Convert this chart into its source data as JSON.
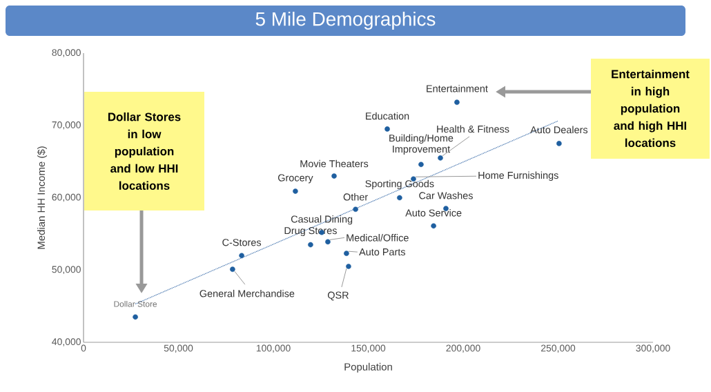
{
  "chart_data": {
    "type": "scatter",
    "title": "5 Mile Demographics",
    "xlabel": "Population",
    "ylabel": "Median HH Income ($)",
    "xlim": [
      0,
      300000
    ],
    "ylim": [
      40000,
      80000
    ],
    "xticks": [
      0,
      {
        "value": 50000,
        "label": "50,000"
      },
      {
        "value": 100000,
        "label": "100,000"
      },
      {
        "value": 150000,
        "label": "150,000"
      },
      {
        "value": 200000,
        "label": "200,000"
      },
      {
        "value": 250000,
        "label": "250,000"
      },
      {
        "value": 300000,
        "label": "300,000"
      }
    ],
    "yticks": [
      {
        "value": 40000,
        "label": "40,000"
      },
      {
        "value": 50000,
        "label": "50,000"
      },
      {
        "value": 60000,
        "label": "60,000"
      },
      {
        "value": 70000,
        "label": "70,000"
      },
      {
        "value": 80000,
        "label": "80,000"
      }
    ],
    "grid": false,
    "series": [
      {
        "marker": "circle",
        "color": "#1f5fa0",
        "x": [
          27300,
          78500,
          83300,
          111600,
          119600,
          125500,
          128700,
          132000,
          138500,
          139600,
          143300,
          160000,
          166500,
          173800,
          190900,
          184400,
          177800,
          188000,
          196700,
          250500
        ],
        "values": [
          43500,
          50100,
          52000,
          60900,
          53500,
          55200,
          53900,
          63000,
          52300,
          50500,
          58400,
          69500,
          60000,
          62600,
          58500,
          56100,
          64600,
          65500,
          73200,
          67500
        ]
      },
      {
        "type": "line",
        "color": "#4a78b0",
        "line_style": "dotted",
        "x": [
          27300,
          249800
        ],
        "values": [
          45300,
          70600
        ]
      }
    ],
    "annotations": [
      {
        "text": "Dollar Store",
        "x": 27300,
        "y": 43500
      },
      {
        "text": "General Merchandise",
        "x": 78500,
        "y": 50100
      },
      {
        "text": "C-Stores",
        "x": 83300,
        "y": 52000
      },
      {
        "text": "Grocery",
        "x": 111600,
        "y": 60900
      },
      {
        "text": "Drug Stores",
        "x": 119600,
        "y": 53500
      },
      {
        "text": "Casual Dining",
        "x": 125500,
        "y": 55200
      },
      {
        "text": "Medical/Office",
        "x": 128700,
        "y": 53900
      },
      {
        "text": "Movie Theaters",
        "x": 132000,
        "y": 63000
      },
      {
        "text": "Auto Parts",
        "x": 138500,
        "y": 52300
      },
      {
        "text": "QSR",
        "x": 139600,
        "y": 50500
      },
      {
        "text": "Other",
        "x": 143300,
        "y": 58400
      },
      {
        "text": "Education",
        "x": 160000,
        "y": 69500
      },
      {
        "text": "Sporting Goods",
        "x": 166500,
        "y": 60000
      },
      {
        "text": "Home Furnishings",
        "x": 173800,
        "y": 62600
      },
      {
        "text": "Car Washes",
        "x": 190900,
        "y": 58500
      },
      {
        "text": "Auto Service",
        "x": 184400,
        "y": 56100
      },
      {
        "text": "Building/Home Improvement",
        "x": 177800,
        "y": 64600
      },
      {
        "text": "Health & Fitness",
        "x": 188000,
        "y": 65500
      },
      {
        "text": "Entertainment",
        "x": 196700,
        "y": 73200
      },
      {
        "text": "Auto Dealers",
        "x": 250500,
        "y": 67500
      },
      "Dollar Stores in low population and low HHI locations",
      "Entertainment in high population and high HHI locations"
    ]
  }
}
